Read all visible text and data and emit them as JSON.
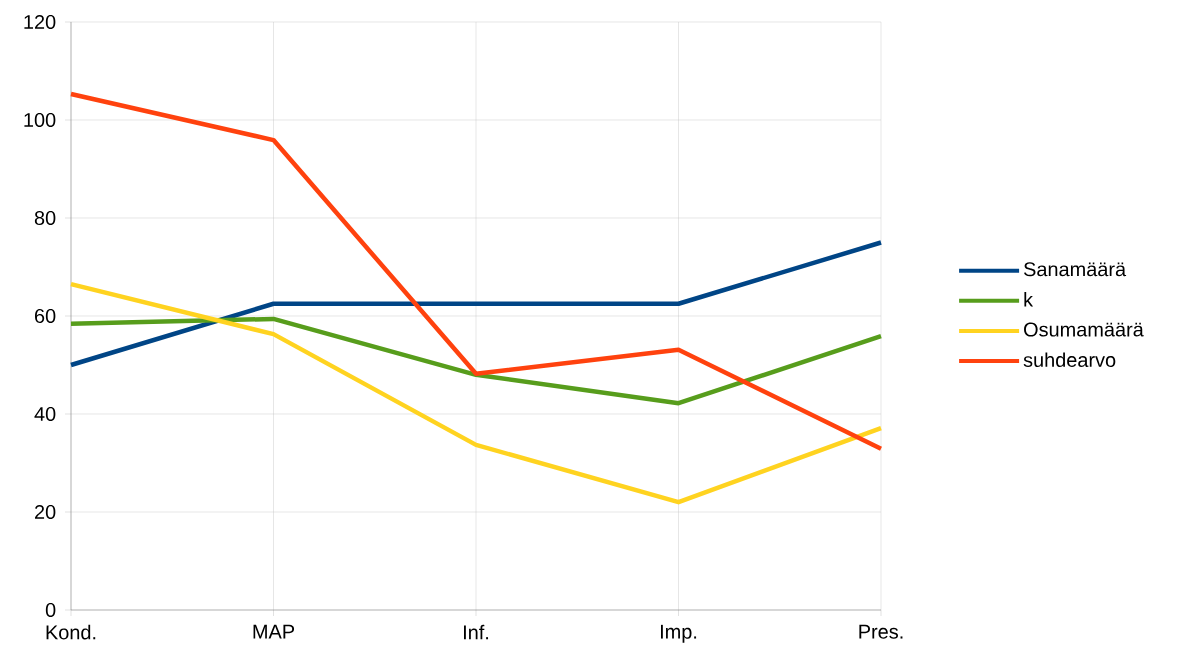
{
  "chart_data": {
    "type": "line",
    "categories": [
      "Kond.",
      "MAP",
      "Inf.",
      "Imp.",
      "Pres."
    ],
    "series": [
      {
        "name": "Sanamäärä",
        "color": "#004586",
        "values": [
          50,
          62.5,
          62.5,
          62.5,
          75
        ]
      },
      {
        "name": "k",
        "color": "#579d1c",
        "values": [
          58.4,
          59.4,
          48,
          42.2,
          55.9
        ]
      },
      {
        "name": "Osumamäärä",
        "color": "#ffd320",
        "values": [
          66.5,
          56.3,
          33.7,
          22,
          37.1
        ]
      },
      {
        "name": "suhdearvo",
        "color": "#ff420e",
        "values": [
          105.3,
          95.9,
          48.2,
          53.1,
          32.9
        ]
      }
    ],
    "ylim": [
      0,
      120
    ],
    "yticks": [
      0,
      20,
      40,
      60,
      80,
      100,
      120
    ],
    "grid": true,
    "legend": "right",
    "marker": "none",
    "line_style": "solid"
  }
}
